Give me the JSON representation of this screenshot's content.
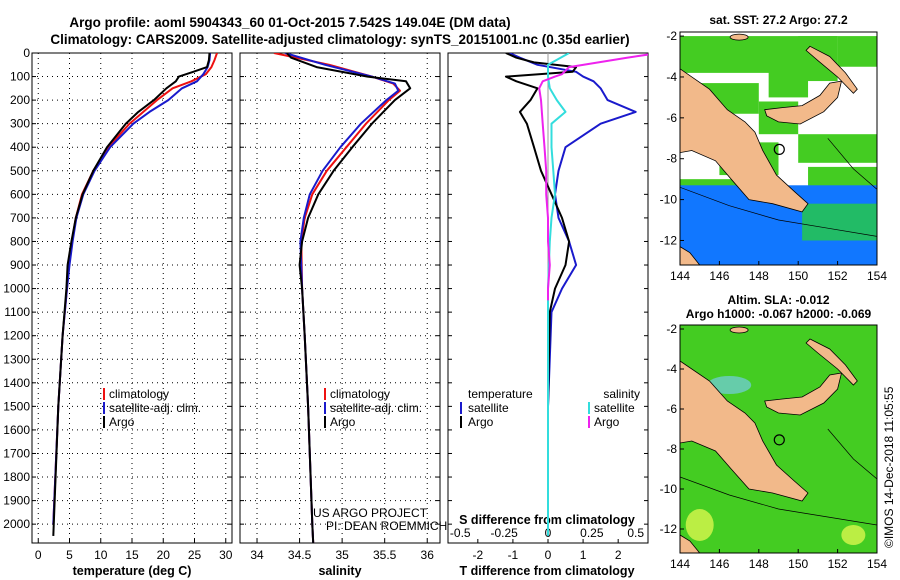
{
  "header": {
    "title_line1": "Argo profile: aoml 5904343_60 01-Oct-2015 7.542S 149.04E (DM data)",
    "title_line2": "Climatology: CARS2009. Satellite-adjusted climatology: synTS_20151001.nc (0.35d earlier)"
  },
  "credits": {
    "project": "US ARGO PROJECT",
    "pi": "PI: DEAN ROEMMICH",
    "imos": "©IMOS 14-Dec-2018 11:05:55"
  },
  "colors": {
    "climatology": "#ee1111",
    "satellite": "#1a1acc",
    "argo": "#000000",
    "t_satellite": "#1a1acc",
    "s_satellite": "#33dddd",
    "s_argo": "#ee22ee",
    "land": "#f2b98a",
    "ocean_green": "#44cc22",
    "ocean_blue": "#1177ff"
  },
  "chart_data": [
    {
      "type": "line",
      "panel": "temperature",
      "xlabel": "temperature (deg C)",
      "ylabel": "",
      "xlim": [
        -1,
        31
      ],
      "ylim": [
        2080,
        0
      ],
      "xticks": [
        0,
        5,
        10,
        15,
        20,
        25,
        30
      ],
      "yticks": [
        0,
        100,
        200,
        300,
        400,
        500,
        600,
        700,
        800,
        900,
        1000,
        1100,
        1200,
        1300,
        1400,
        1500,
        1600,
        1700,
        1800,
        1900,
        2000
      ],
      "grid": true,
      "legend": [
        "climatology",
        "satellite-adj. clim.",
        "Argo"
      ],
      "series": [
        {
          "name": "climatology",
          "color_key": "climatology",
          "depth": [
            0,
            30,
            60,
            90,
            120,
            150,
            200,
            250,
            300,
            400,
            500,
            600,
            700,
            800,
            900,
            1000,
            1200,
            1500,
            2000
          ],
          "values": [
            28.6,
            28.2,
            27.7,
            26.8,
            24.5,
            21.5,
            19.0,
            16.8,
            14.6,
            11.2,
            8.8,
            7.0,
            6.0,
            5.4,
            4.9,
            4.6,
            3.9,
            3.2,
            2.4
          ]
        },
        {
          "name": "satellite-adj. clim.",
          "color_key": "satellite",
          "depth": [
            0,
            30,
            60,
            90,
            120,
            150,
            200,
            250,
            300,
            400,
            500,
            600,
            700,
            800,
            900,
            1000,
            1200,
            1500,
            2000
          ],
          "values": [
            27.5,
            27.4,
            27.1,
            26.4,
            25.4,
            23.0,
            20.8,
            17.8,
            15.2,
            11.5,
            9.0,
            7.2,
            6.1,
            5.5,
            5.0,
            4.6,
            3.9,
            3.2,
            2.4
          ]
        },
        {
          "name": "Argo",
          "color_key": "argo",
          "depth": [
            0,
            30,
            60,
            80,
            100,
            120,
            150,
            200,
            250,
            300,
            400,
            500,
            600,
            700,
            800,
            900,
            950,
            1000,
            1200,
            1500,
            2050
          ],
          "values": [
            27.4,
            27.3,
            27.0,
            24.8,
            22.5,
            22.0,
            20.5,
            18.5,
            16.0,
            14.0,
            11.0,
            8.8,
            7.1,
            6.0,
            5.3,
            4.7,
            4.6,
            4.5,
            3.9,
            3.2,
            2.4
          ]
        }
      ]
    },
    {
      "type": "line",
      "panel": "salinity",
      "xlabel": "salinity",
      "ylabel": "",
      "xlim": [
        33.8,
        36.15
      ],
      "ylim": [
        2080,
        0
      ],
      "xticks": [
        34,
        34.5,
        35,
        35.5,
        36
      ],
      "xticklabels": [
        "34",
        "34.5",
        "35",
        "35.5",
        "36"
      ],
      "grid": true,
      "legend": [
        "climatology",
        "satellite-adj. clim.",
        "Argo"
      ],
      "series": [
        {
          "name": "climatology",
          "color_key": "climatology",
          "depth": [
            0,
            50,
            100,
            130,
            160,
            200,
            300,
            400,
            500,
            600,
            700,
            800,
            1000,
            1200,
            1500,
            2000,
            2080
          ],
          "values": [
            34.2,
            34.85,
            35.35,
            35.6,
            35.68,
            35.55,
            35.28,
            35.05,
            34.82,
            34.65,
            34.56,
            34.52,
            34.53,
            34.56,
            34.6,
            34.65,
            34.66
          ]
        },
        {
          "name": "satellite-adj. clim.",
          "color_key": "satellite",
          "depth": [
            0,
            50,
            100,
            130,
            160,
            200,
            300,
            400,
            500,
            600,
            700,
            800,
            1000,
            1200,
            1500,
            2000,
            2080
          ],
          "values": [
            34.33,
            34.8,
            35.35,
            35.62,
            35.66,
            35.52,
            35.22,
            34.98,
            34.77,
            34.62,
            34.55,
            34.51,
            34.53,
            34.56,
            34.6,
            34.65,
            34.66
          ]
        },
        {
          "name": "Argo",
          "color_key": "argo",
          "depth": [
            0,
            20,
            60,
            100,
            120,
            150,
            200,
            300,
            400,
            500,
            600,
            700,
            800,
            900,
            1000,
            1200,
            1500,
            2000,
            2080
          ],
          "values": [
            34.35,
            34.4,
            34.7,
            35.3,
            35.75,
            35.8,
            35.62,
            35.35,
            35.12,
            34.9,
            34.72,
            34.6,
            34.53,
            34.5,
            34.53,
            34.56,
            34.6,
            34.65,
            34.66
          ]
        }
      ]
    },
    {
      "type": "line",
      "panel": "difference",
      "xlabel": "T difference from climatology",
      "xlabel_top": "S difference from climatology",
      "xlim": [
        -2.85,
        2.85
      ],
      "ylim": [
        2080,
        0
      ],
      "xticks": [
        -2,
        -1,
        0,
        1,
        2
      ],
      "xticks_S": [
        -0.5,
        -0.25,
        0,
        0.25,
        0.5
      ],
      "xticklabels_S": [
        "-0.5",
        "-0.25",
        "0",
        "0.25",
        "0.5"
      ],
      "legend_T": {
        "title": "temperature",
        "items": [
          "satellite",
          "Argo"
        ]
      },
      "legend_S": {
        "title": "salinity",
        "items": [
          "satellite",
          "Argo"
        ]
      },
      "series": [
        {
          "name": "satellite",
          "group": "temperature",
          "color_key": "t_satellite",
          "depth": [
            0,
            20,
            50,
            80,
            100,
            120,
            150,
            200,
            250,
            300,
            400,
            500,
            600,
            700,
            800,
            900,
            1000,
            1100,
            1500,
            2050
          ],
          "values": [
            -1.1,
            -0.8,
            -0.3,
            0.8,
            1.0,
            1.3,
            1.5,
            1.7,
            2.5,
            1.5,
            0.5,
            0.3,
            0.2,
            0.3,
            0.6,
            0.8,
            0.4,
            0.1,
            0.0,
            0.0
          ]
        },
        {
          "name": "Argo",
          "group": "temperature",
          "color_key": "argo",
          "depth": [
            0,
            20,
            40,
            60,
            80,
            100,
            120,
            150,
            200,
            250,
            300,
            400,
            500,
            600,
            700,
            800,
            900,
            1000,
            1100,
            1500,
            2050
          ],
          "values": [
            -1.2,
            -0.9,
            -0.4,
            0.8,
            0.7,
            -1.2,
            -0.9,
            -0.3,
            -0.5,
            -0.8,
            -0.6,
            -0.4,
            -0.2,
            0.1,
            0.4,
            0.6,
            0.5,
            0.2,
            0.05,
            0.0,
            0.0
          ]
        },
        {
          "name": "satellite",
          "group": "salinity",
          "color_key": "s_satellite",
          "depth": [
            0,
            50,
            100,
            150,
            200,
            250,
            300,
            400,
            500,
            600,
            700,
            800,
            1000,
            1500,
            2050
          ],
          "values": [
            0.12,
            0.0,
            0.0,
            0.01,
            0.05,
            0.1,
            0.02,
            0.02,
            0.03,
            0.04,
            0.02,
            0.01,
            0.0,
            0.0,
            0.0
          ]
        },
        {
          "name": "Argo",
          "group": "salinity",
          "color_key": "s_argo",
          "depth": [
            0,
            20,
            60,
            90,
            100,
            120,
            150,
            200,
            300,
            400,
            500,
            600,
            700,
            800,
            900,
            1000,
            1050
          ],
          "values": [
            0.63,
            0.45,
            0.12,
            0.08,
            0.04,
            -0.03,
            -0.05,
            -0.04,
            -0.03,
            -0.02,
            -0.01,
            -0.01,
            0.0,
            0.0,
            0.01,
            0.0,
            0.0
          ]
        }
      ]
    }
  ],
  "maps": [
    {
      "title_line1": "sat. SST: 27.2 Argo: 27.2",
      "title_line2": "",
      "lon_range": [
        144,
        154
      ],
      "lat_range": [
        -13.2,
        -1.8
      ],
      "xticks": [
        144,
        146,
        148,
        150,
        152,
        154
      ],
      "yticks": [
        -2,
        -4,
        -6,
        -8,
        -10,
        -12
      ],
      "marker": {
        "lon": 149.04,
        "lat": -7.542
      }
    },
    {
      "title_line1": "Altim. SLA: -0.012",
      "title_line2": "Argo h1000: -0.067 h2000: -0.069",
      "lon_range": [
        144,
        154
      ],
      "lat_range": [
        -13.2,
        -1.8
      ],
      "xticks": [
        144,
        146,
        148,
        150,
        152,
        154
      ],
      "yticks": [
        -2,
        -4,
        -6,
        -8,
        -10,
        -12
      ],
      "marker": {
        "lon": 149.04,
        "lat": -7.542
      }
    }
  ]
}
